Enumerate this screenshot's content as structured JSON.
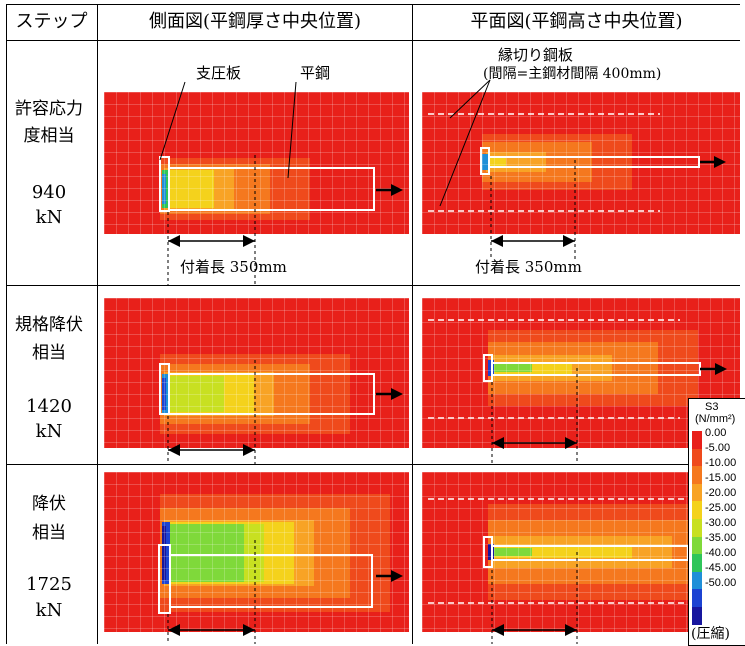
{
  "headers": {
    "step": "ステップ",
    "side_view": "側面図(平鋼厚さ中央位置)",
    "plan_view": "平面図(平鋼高さ中央位置)"
  },
  "rows": [
    {
      "label_line1": "許容応力",
      "label_line2": "度相当",
      "load_value": "940",
      "load_unit": "kN"
    },
    {
      "label_line1": "規格降伏",
      "label_line2": "相当",
      "load_value": "1420",
      "load_unit": "kN"
    },
    {
      "label_line1": "降伏",
      "label_line2": "相当",
      "load_value": "1725",
      "load_unit": "kN"
    }
  ],
  "annotations": {
    "bearing_plate": "支圧板",
    "flat_steel": "平鋼",
    "edge_plate_line1": "縁切り鋼板",
    "edge_plate_line2": "(間隔=主鋼材間隔  400mm)",
    "bond_length_side": "付着長  350mm",
    "bond_length_plan": "付着長  350mm"
  },
  "legend": {
    "title_line1": "S3",
    "title_line2": "(N/mm²)",
    "labels": [
      "0.00",
      "-5.00",
      "-10.00",
      "-15.00",
      "-20.00",
      "-25.00",
      "-30.00",
      "-35.00",
      "-40.00",
      "-45.00",
      "-50.00"
    ],
    "note": "(圧縮)",
    "colors": [
      "#e8201a",
      "#ef4a1c",
      "#f5781e",
      "#f8a325",
      "#f4d21c",
      "#c8e021",
      "#7fd93a",
      "#2fc55a",
      "#1f8fd8",
      "#1c43d2",
      "#17169e"
    ]
  }
}
